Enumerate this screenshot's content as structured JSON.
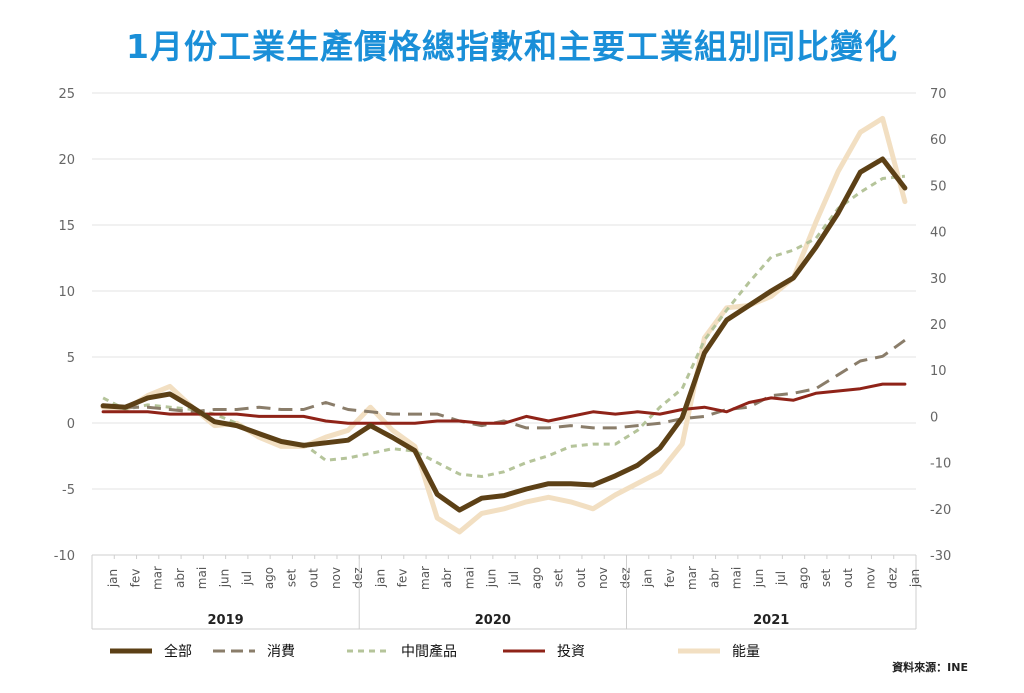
{
  "title": "1月份工業生產價格總指數和主要工業組別同比變化",
  "source": "資料來源：INE",
  "chart_data": {
    "type": "line",
    "categories": [
      "jan",
      "fev",
      "mar",
      "abr",
      "mai",
      "jun",
      "jul",
      "ago",
      "set",
      "out",
      "nov",
      "dez",
      "jan",
      "fev",
      "mar",
      "abr",
      "mai",
      "jun",
      "jul",
      "ago",
      "set",
      "out",
      "nov",
      "dez",
      "jan",
      "fev",
      "mar",
      "abr",
      "mai",
      "jun",
      "jul",
      "ago",
      "set",
      "out",
      "nov",
      "dez",
      "jan"
    ],
    "years": [
      {
        "label": "2019",
        "start": 0,
        "end": 11
      },
      {
        "label": "2020",
        "start": 12,
        "end": 23
      },
      {
        "label": "2021",
        "start": 24,
        "end": 36
      }
    ],
    "left_axis": {
      "ylim": [
        -10,
        25
      ],
      "ticks": [
        25,
        20,
        15,
        10,
        5,
        0,
        -5,
        -10
      ]
    },
    "right_axis": {
      "ylim": [
        -30,
        70
      ],
      "ticks": [
        70,
        60,
        50,
        40,
        30,
        20,
        10,
        0,
        -10,
        -20,
        -30
      ]
    },
    "grid": true,
    "legend_position": "bottom",
    "series": [
      {
        "name": "全部",
        "axis": "left",
        "color": "#5c4016",
        "dash": "solid",
        "width": 5,
        "values": [
          1.3,
          1.2,
          1.9,
          2.2,
          1.2,
          0.1,
          -0.2,
          -0.8,
          -1.4,
          -1.7,
          -1.5,
          -1.3,
          -0.2,
          -1.1,
          -2.1,
          -5.4,
          -6.6,
          -5.7,
          -5.5,
          -5.0,
          -4.6,
          -4.6,
          -4.7,
          -4.0,
          -3.2,
          -1.9,
          0.4,
          5.3,
          7.8,
          8.9,
          10.0,
          11.0,
          13.3,
          15.9,
          19.0,
          20.0,
          17.8
        ]
      },
      {
        "name": "消費",
        "axis": "right",
        "color": "#8a7d6a",
        "dash": "long",
        "width": 3,
        "values": [
          2.5,
          2.0,
          2.0,
          1.5,
          1.0,
          1.5,
          1.5,
          2.0,
          1.5,
          1.5,
          3.0,
          1.5,
          1.0,
          0.5,
          0.5,
          0.5,
          -1.0,
          -2.0,
          -1.0,
          -2.5,
          -2.5,
          -2.0,
          -2.5,
          -2.5,
          -2.0,
          -1.5,
          -0.5,
          0.0,
          1.5,
          2.0,
          4.5,
          5.0,
          6.0,
          9.0,
          12.0,
          13.0,
          16.5
        ]
      },
      {
        "name": "中間產品",
        "axis": "right",
        "color": "#b5c49a",
        "dash": "short",
        "width": 3,
        "values": [
          4.0,
          1.5,
          2.5,
          2.0,
          1.5,
          0.5,
          -1.5,
          -4.0,
          -5.5,
          -6.0,
          -9.5,
          -9.0,
          -8.0,
          -7.0,
          -7.5,
          -10.0,
          -12.5,
          -13.0,
          -12.0,
          -10.0,
          -8.5,
          -6.5,
          -6.0,
          -6.0,
          -3.0,
          2.0,
          6.0,
          16.5,
          23.0,
          29.0,
          34.5,
          36.0,
          38.5,
          45.0,
          48.5,
          51.5,
          52.0
        ]
      },
      {
        "name": "投資",
        "axis": "right",
        "color": "#8f2318",
        "dash": "solid",
        "width": 3,
        "values": [
          1.0,
          1.0,
          1.0,
          0.5,
          0.5,
          0.5,
          0.5,
          0.0,
          0.0,
          0.0,
          -1.0,
          -1.5,
          -1.5,
          -1.5,
          -1.5,
          -1.0,
          -1.0,
          -1.5,
          -1.5,
          0.0,
          -1.0,
          0.0,
          1.0,
          0.5,
          1.0,
          0.5,
          1.5,
          2.0,
          1.0,
          3.0,
          4.0,
          3.5,
          5.0,
          5.5,
          6.0,
          7.0,
          7.0
        ]
      },
      {
        "name": "能量",
        "axis": "right",
        "color": "#f2dfc2",
        "dash": "solid",
        "width": 5,
        "values": [
          2.0,
          1.5,
          4.5,
          6.5,
          2.0,
          -2.0,
          -1.5,
          -4.5,
          -6.5,
          -6.5,
          -4.5,
          -3.0,
          2.0,
          -3.0,
          -6.5,
          -22.0,
          -25.0,
          -21.0,
          -20.0,
          -18.5,
          -17.5,
          -18.5,
          -20.0,
          -17.0,
          -14.5,
          -12.0,
          -6.0,
          17.0,
          23.5,
          24.0,
          26.0,
          30.0,
          42.0,
          53.0,
          61.5,
          64.5,
          46.5
        ]
      }
    ]
  }
}
